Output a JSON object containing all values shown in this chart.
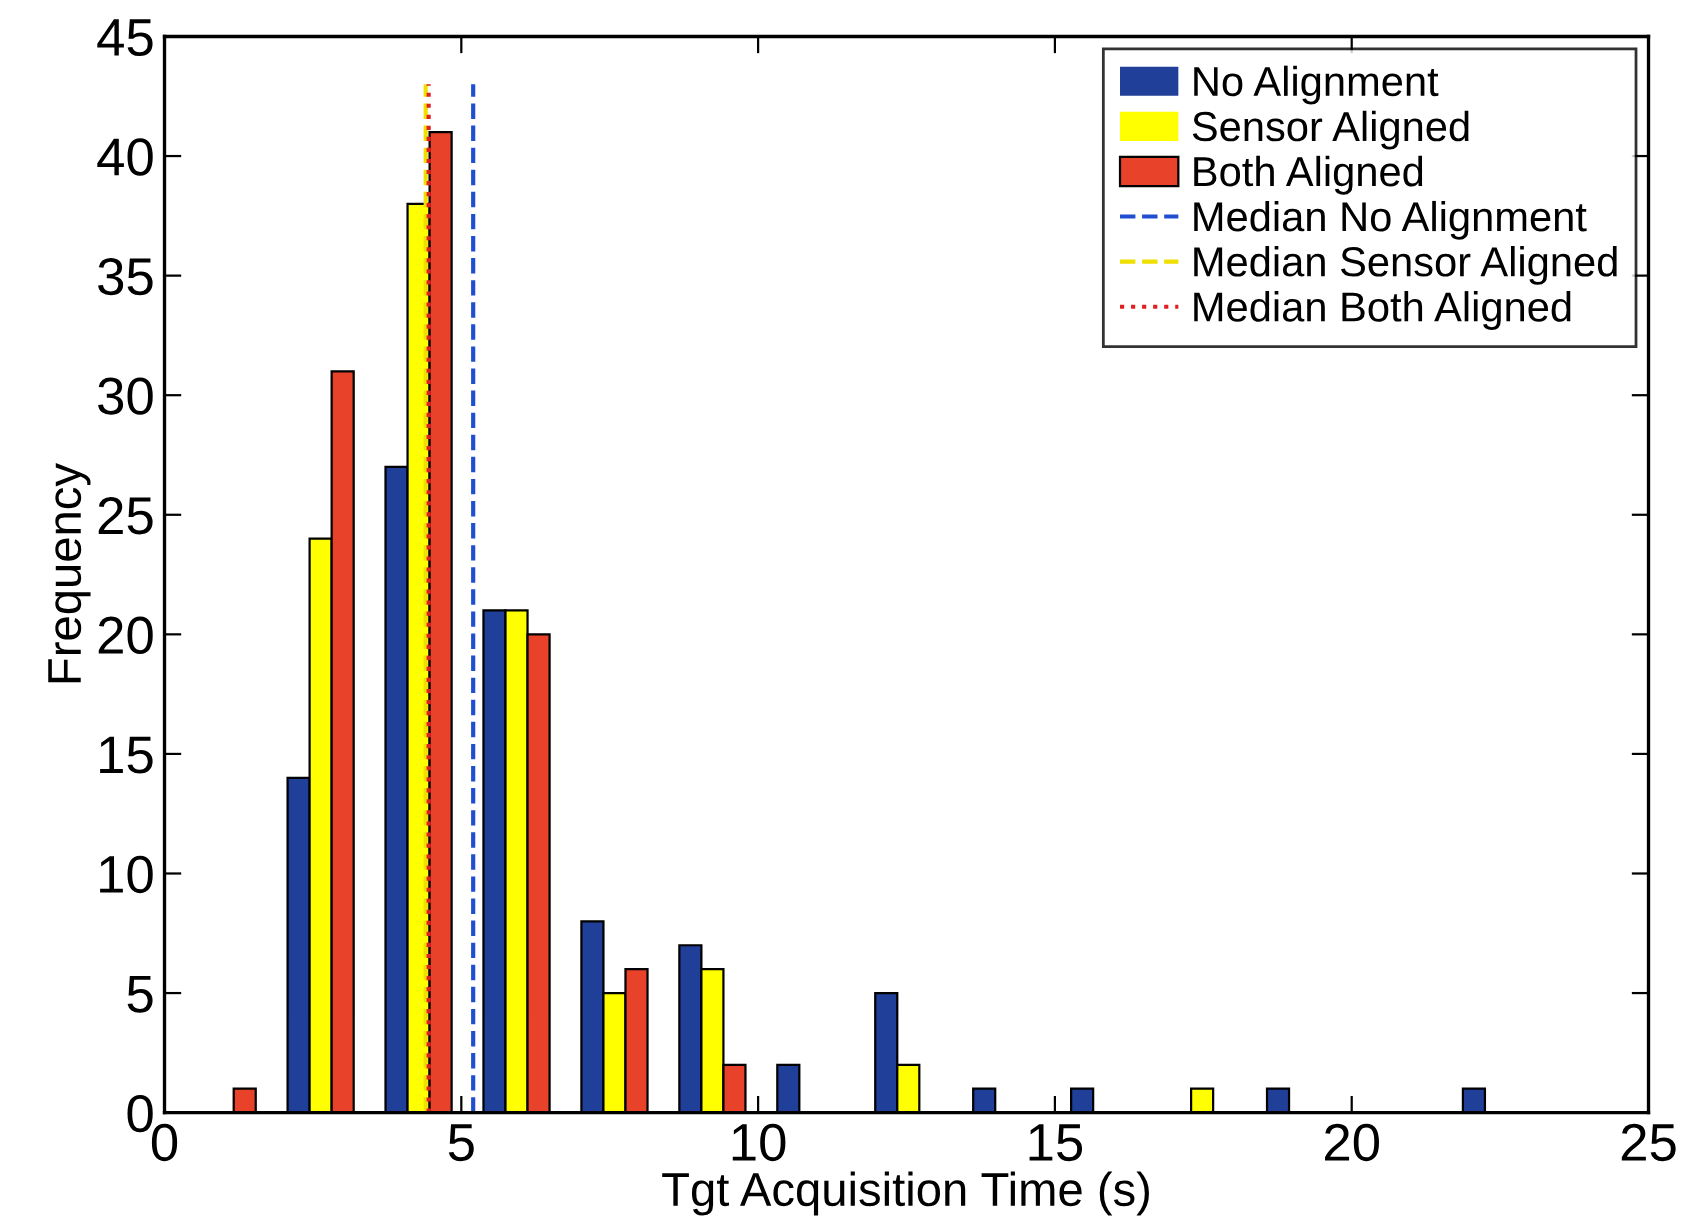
{
  "chart_data": {
    "type": "bar",
    "xlabel": "Tgt Acquisition Time (s)",
    "ylabel": "Frequency",
    "x": [
      0.98,
      2.63,
      4.28,
      5.93,
      7.58,
      9.23,
      10.88,
      12.53,
      14.18,
      15.83,
      17.48,
      19.13,
      20.78,
      22.43
    ],
    "series": [
      {
        "name": "No Alignment",
        "color": "#1f3f99",
        "values": [
          0,
          14,
          27,
          21,
          8,
          7,
          2,
          5,
          1,
          1,
          0,
          1,
          0,
          1
        ]
      },
      {
        "name": "Sensor Aligned",
        "color": "#ffff00",
        "values": [
          0,
          24,
          38,
          21,
          5,
          6,
          0,
          2,
          0,
          0,
          1,
          0,
          0,
          0
        ]
      },
      {
        "name": "Both Aligned",
        "color": "#e8432a",
        "values": [
          1,
          31,
          41,
          20,
          6,
          2,
          0,
          0,
          0,
          0,
          0,
          0,
          0,
          0
        ]
      },
      {
        "name": "Median No Alignment",
        "type": "line",
        "line_style": "dashed",
        "color": "#1f4fd0",
        "x": [
          5.2,
          5.2
        ],
        "values": [
          0,
          43
        ]
      },
      {
        "name": "Median Sensor Aligned",
        "type": "line",
        "line_style": "dashed",
        "color": "#f0e000",
        "x": [
          4.4,
          4.4
        ],
        "values": [
          0,
          43
        ]
      },
      {
        "name": "Median Both Aligned",
        "type": "line",
        "line_style": "dotted",
        "color": "#e02020",
        "x": [
          4.45,
          4.45
        ],
        "values": [
          0,
          43
        ]
      }
    ],
    "xlim": [
      0,
      25
    ],
    "xticks": [
      0,
      5,
      10,
      15,
      20,
      25
    ],
    "ylim": [
      0,
      45
    ],
    "yticks": [
      0,
      5,
      10,
      15,
      20,
      25,
      30,
      35,
      40,
      45
    ],
    "legend": "top right",
    "grid": false
  }
}
